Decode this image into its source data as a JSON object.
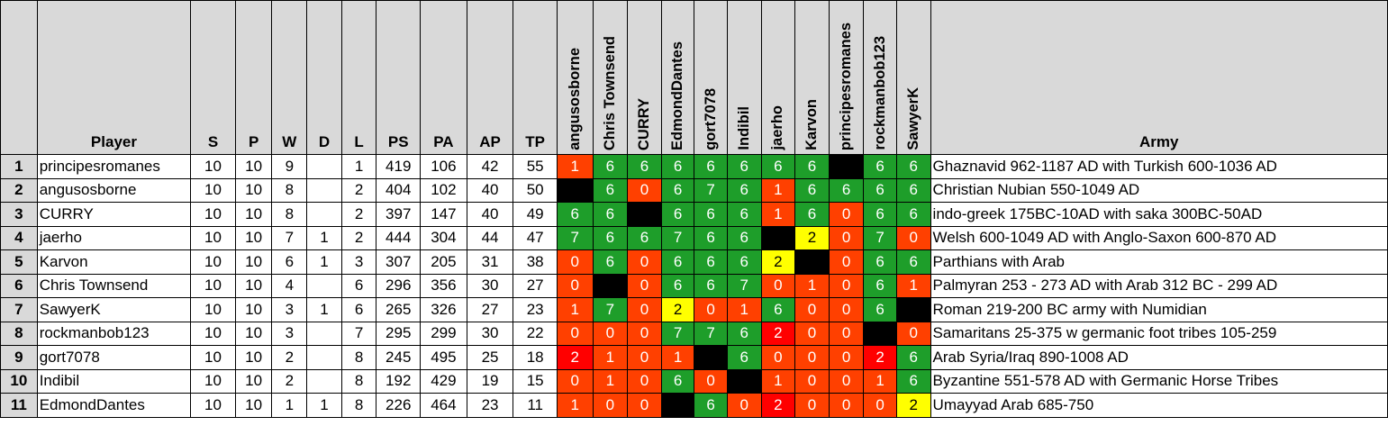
{
  "headers": {
    "rank": "",
    "player": "Player",
    "S": "S",
    "P": "P",
    "W": "W",
    "D": "D",
    "L": "L",
    "PS": "PS",
    "PA": "PA",
    "AP": "AP",
    "TP": "TP",
    "opponents": [
      "angusosborne",
      "Chris Townsend",
      "CURRY",
      "EdmondDantes",
      "gort7078",
      "Indibil",
      "jaerho",
      "Karvon",
      "principesromanes",
      "rockmanbob123",
      "SawyerK"
    ],
    "army": "Army"
  },
  "colors": {
    "win": "#1e9e2a",
    "loss": "#ff4000",
    "heavy_loss": "#ff0000",
    "draw": "#ffff00",
    "self": "#000000",
    "header_bg": "#d9d9d9"
  },
  "rows": [
    {
      "rank": "1",
      "player": "principesromanes",
      "S": "10",
      "P": "10",
      "W": "9",
      "D": "",
      "L": "1",
      "PS": "419",
      "PA": "106",
      "AP": "42",
      "TP": "55",
      "results": [
        "1",
        "6",
        "6",
        "6",
        "6",
        "6",
        "6",
        "6",
        "",
        "6",
        "6"
      ],
      "types": [
        "loss",
        "win",
        "win",
        "win",
        "win",
        "win",
        "win",
        "win",
        "self",
        "win",
        "win"
      ],
      "army": "Ghaznavid 962-1187 AD with Turkish 600-1036 AD"
    },
    {
      "rank": "2",
      "player": "angusosborne",
      "S": "10",
      "P": "10",
      "W": "8",
      "D": "",
      "L": "2",
      "PS": "404",
      "PA": "102",
      "AP": "40",
      "TP": "50",
      "results": [
        "",
        "6",
        "0",
        "6",
        "7",
        "6",
        "1",
        "6",
        "6",
        "6",
        "6"
      ],
      "types": [
        "self",
        "win",
        "loss",
        "win",
        "win",
        "win",
        "loss",
        "win",
        "win",
        "win",
        "win"
      ],
      "army": "Christian Nubian 550-1049 AD"
    },
    {
      "rank": "3",
      "player": "CURRY",
      "S": "10",
      "P": "10",
      "W": "8",
      "D": "",
      "L": "2",
      "PS": "397",
      "PA": "147",
      "AP": "40",
      "TP": "49",
      "results": [
        "6",
        "6",
        "",
        "6",
        "6",
        "6",
        "1",
        "6",
        "0",
        "6",
        "6"
      ],
      "types": [
        "win",
        "win",
        "self",
        "win",
        "win",
        "win",
        "loss",
        "win",
        "loss",
        "win",
        "win"
      ],
      "army": "indo-greek 175BC-10AD with saka 300BC-50AD"
    },
    {
      "rank": "4",
      "player": "jaerho",
      "S": "10",
      "P": "10",
      "W": "7",
      "D": "1",
      "L": "2",
      "PS": "444",
      "PA": "304",
      "AP": "44",
      "TP": "47",
      "results": [
        "7",
        "6",
        "6",
        "7",
        "6",
        "6",
        "",
        "2",
        "0",
        "7",
        "0"
      ],
      "types": [
        "win",
        "win",
        "win",
        "win",
        "win",
        "win",
        "self",
        "draw",
        "loss",
        "win",
        "loss"
      ],
      "army": "Welsh 600-1049 AD with Anglo-Saxon 600-870 AD"
    },
    {
      "rank": "5",
      "player": "Karvon",
      "S": "10",
      "P": "10",
      "W": "6",
      "D": "1",
      "L": "3",
      "PS": "307",
      "PA": "205",
      "AP": "31",
      "TP": "38",
      "results": [
        "0",
        "6",
        "0",
        "6",
        "6",
        "6",
        "2",
        "",
        "0",
        "6",
        "6"
      ],
      "types": [
        "loss",
        "win",
        "loss",
        "win",
        "win",
        "win",
        "draw",
        "self",
        "loss",
        "win",
        "win"
      ],
      "army": "Parthians with Arab"
    },
    {
      "rank": "6",
      "player": "Chris Townsend",
      "S": "10",
      "P": "10",
      "W": "4",
      "D": "",
      "L": "6",
      "PS": "296",
      "PA": "356",
      "AP": "30",
      "TP": "27",
      "results": [
        "0",
        "",
        "0",
        "6",
        "6",
        "7",
        "0",
        "1",
        "0",
        "6",
        "1"
      ],
      "types": [
        "loss",
        "self",
        "loss",
        "win",
        "win",
        "win",
        "loss",
        "loss",
        "loss",
        "win",
        "loss"
      ],
      "army": "Palmyran 253 - 273 AD with Arab 312 BC - 299 AD"
    },
    {
      "rank": "7",
      "player": "SawyerK",
      "S": "10",
      "P": "10",
      "W": "3",
      "D": "1",
      "L": "6",
      "PS": "265",
      "PA": "326",
      "AP": "27",
      "TP": "23",
      "results": [
        "1",
        "7",
        "0",
        "2",
        "0",
        "1",
        "6",
        "0",
        "0",
        "6",
        ""
      ],
      "types": [
        "loss",
        "win",
        "loss",
        "draw",
        "loss",
        "loss",
        "win",
        "loss",
        "loss",
        "win",
        "self"
      ],
      "army": "Roman 219-200 BC army with Numidian"
    },
    {
      "rank": "8",
      "player": "rockmanbob123",
      "S": "10",
      "P": "10",
      "W": "3",
      "D": "",
      "L": "7",
      "PS": "295",
      "PA": "299",
      "AP": "30",
      "TP": "22",
      "results": [
        "0",
        "0",
        "0",
        "7",
        "7",
        "6",
        "2",
        "0",
        "0",
        "",
        "0"
      ],
      "types": [
        "loss",
        "loss",
        "loss",
        "win",
        "win",
        "win",
        "heavy",
        "loss",
        "loss",
        "self",
        "loss"
      ],
      "army": "Samaritans 25-375 w germanic foot tribes 105-259"
    },
    {
      "rank": "9",
      "player": "gort7078",
      "S": "10",
      "P": "10",
      "W": "2",
      "D": "",
      "L": "8",
      "PS": "245",
      "PA": "495",
      "AP": "25",
      "TP": "18",
      "results": [
        "2",
        "1",
        "0",
        "1",
        "",
        "6",
        "0",
        "0",
        "0",
        "2",
        "6"
      ],
      "types": [
        "heavy",
        "loss",
        "loss",
        "loss",
        "self",
        "win",
        "loss",
        "loss",
        "loss",
        "heavy",
        "win"
      ],
      "army": "Arab Syria/Iraq 890-1008 AD"
    },
    {
      "rank": "10",
      "player": "Indibil",
      "S": "10",
      "P": "10",
      "W": "2",
      "D": "",
      "L": "8",
      "PS": "192",
      "PA": "429",
      "AP": "19",
      "TP": "15",
      "results": [
        "0",
        "1",
        "0",
        "6",
        "0",
        "",
        "1",
        "0",
        "0",
        "1",
        "6"
      ],
      "types": [
        "loss",
        "loss",
        "loss",
        "win",
        "loss",
        "self",
        "loss",
        "loss",
        "loss",
        "loss",
        "win"
      ],
      "army": "Byzantine 551-578 AD with Germanic Horse Tribes"
    },
    {
      "rank": "11",
      "player": "EdmondDantes",
      "S": "10",
      "P": "10",
      "W": "1",
      "D": "1",
      "L": "8",
      "PS": "226",
      "PA": "464",
      "AP": "23",
      "TP": "11",
      "results": [
        "1",
        "0",
        "0",
        "",
        "6",
        "0",
        "2",
        "0",
        "0",
        "0",
        "2"
      ],
      "types": [
        "loss",
        "loss",
        "loss",
        "self",
        "win",
        "loss",
        "heavy",
        "loss",
        "loss",
        "loss",
        "draw"
      ],
      "army": "Umayyad Arab 685-750"
    }
  ]
}
